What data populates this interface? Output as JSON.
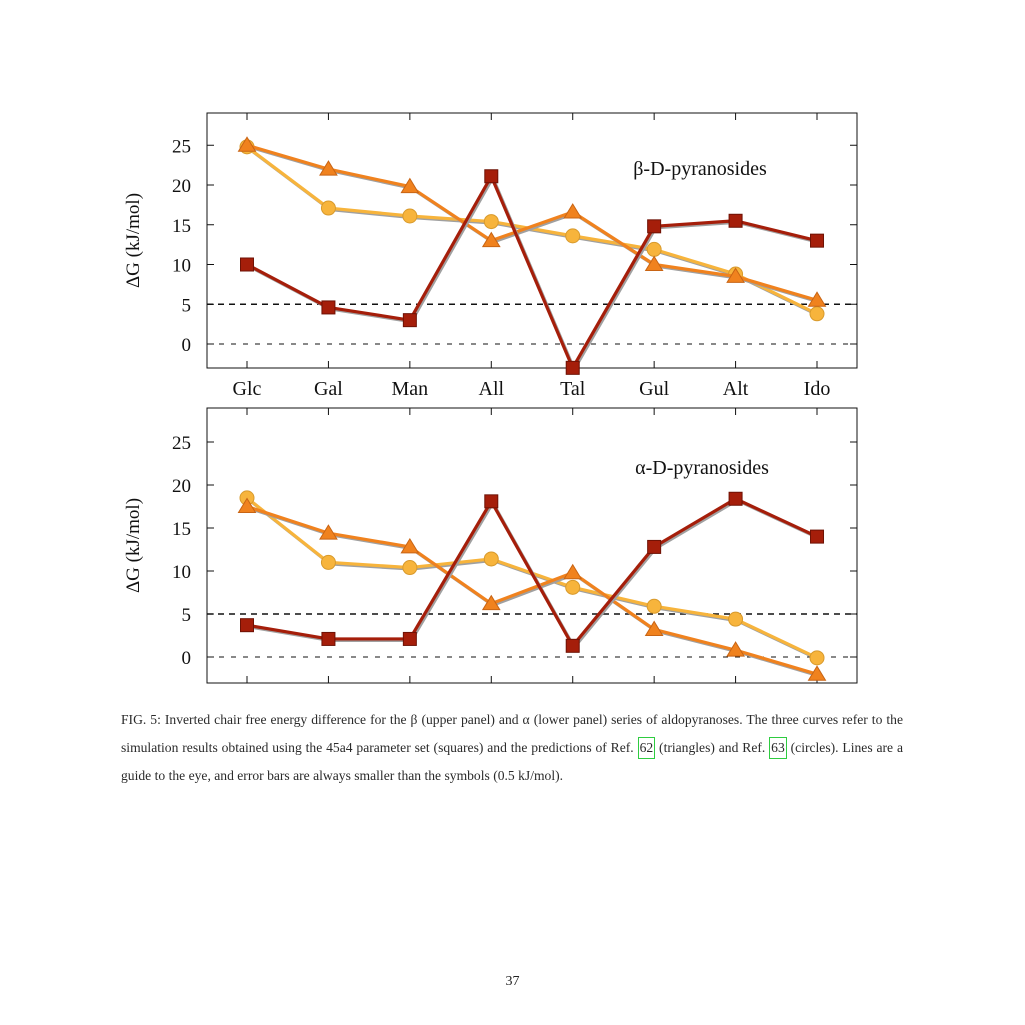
{
  "chart_data": [
    {
      "type": "line",
      "panel": "upper",
      "annotation": "β-D-pyranosides",
      "ylabel": "ΔG (kJ/mol)",
      "xlabel": "",
      "categories": [
        "Glc",
        "Gal",
        "Man",
        "All",
        "Tal",
        "Gul",
        "Alt",
        "Ido"
      ],
      "ylim": [
        -3,
        29
      ],
      "yticks": [
        0,
        5,
        10,
        15,
        20,
        25
      ],
      "reference_lines": [
        0,
        5
      ],
      "grid": false,
      "series": [
        {
          "marker": "square",
          "color": "#a51e0a",
          "values": [
            10,
            4.6,
            3,
            21.1,
            -3,
            14.8,
            15.5,
            13
          ]
        },
        {
          "marker": "triangle",
          "color": "#f0821e",
          "values": [
            25,
            22,
            19.8,
            13,
            16.6,
            10,
            8.5,
            5.5
          ]
        },
        {
          "marker": "circle",
          "color": "#f7b43c",
          "values": [
            24.8,
            17.1,
            16.1,
            15.4,
            13.6,
            11.9,
            8.8,
            3.8
          ]
        }
      ]
    },
    {
      "type": "line",
      "panel": "lower",
      "annotation": "α-D-pyranosides",
      "ylabel": "ΔG (kJ/mol)",
      "xlabel": "",
      "categories": [
        "Glc",
        "Gal",
        "Man",
        "All",
        "Tal",
        "Gul",
        "Alt",
        "Ido"
      ],
      "ylim": [
        -3,
        29
      ],
      "yticks": [
        0,
        5,
        10,
        15,
        20,
        25
      ],
      "reference_lines": [
        0,
        5
      ],
      "grid": false,
      "series": [
        {
          "marker": "square",
          "color": "#a51e0a",
          "values": [
            3.7,
            2.1,
            2.1,
            18.1,
            1.3,
            12.8,
            18.4,
            14
          ]
        },
        {
          "marker": "triangle",
          "color": "#f0821e",
          "values": [
            17.5,
            14.4,
            12.8,
            6.2,
            9.8,
            3.2,
            0.8,
            -2
          ]
        },
        {
          "marker": "circle",
          "color": "#f7b43c",
          "values": [
            18.5,
            11,
            10.4,
            11.4,
            8.1,
            5.9,
            4.4,
            -0.1
          ]
        }
      ]
    }
  ],
  "caption": {
    "part1": "FIG. 5: Inverted chair free energy difference for the β (upper panel) and α (lower panel) series of aldopyranoses. The three curves refer to the simulation results obtained using the 45a4 parameter set (squares) and the predictions of Ref. ",
    "ref1": "62",
    "part2": " (triangles) and Ref. ",
    "ref2": "63",
    "part3": " (circles). Lines are a guide to the eye, and error bars are always smaller than the symbols (0.5 kJ/mol)."
  },
  "page_number": "37"
}
